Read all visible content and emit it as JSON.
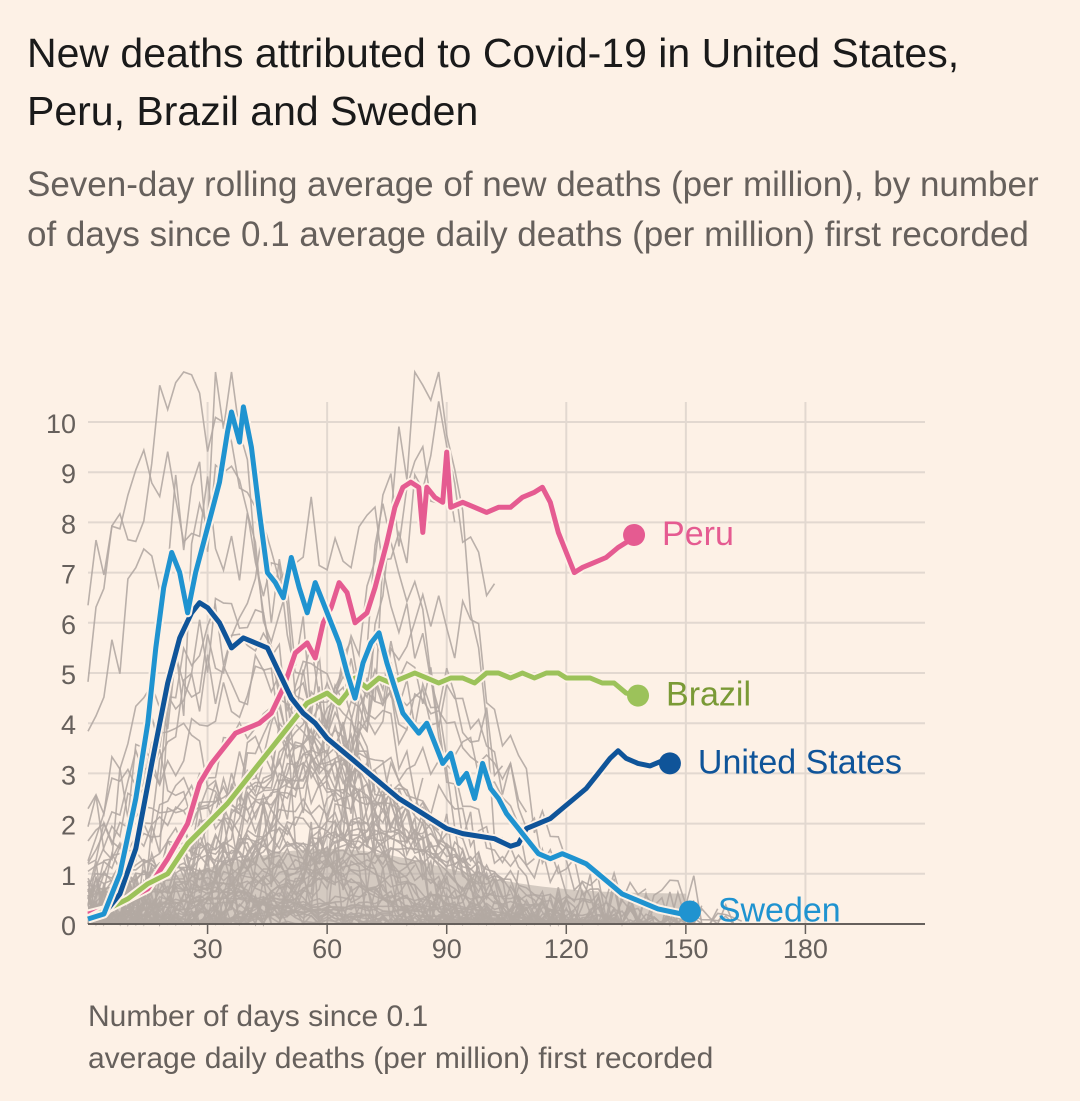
{
  "chart_data": {
    "type": "line",
    "title": "New deaths attributed to Covid-19 in United States, Peru, Brazil and Sweden",
    "subtitle": "Seven-day rolling average of new deaths (per million), by number of days since 0.1 average daily deaths (per million) first recorded",
    "xlabel_line1": "Number of days since 0.1",
    "xlabel_line2": "average daily deaths (per million) first recorded",
    "ylabel": "",
    "xlim": [
      0,
      210
    ],
    "ylim": [
      0,
      10
    ],
    "x_ticks": [
      30,
      60,
      90,
      120,
      150,
      180
    ],
    "y_ticks": [
      0,
      1,
      2,
      3,
      4,
      5,
      6,
      7,
      8,
      9,
      10
    ],
    "grid": true,
    "background_series_note": "Other countries shown in grey",
    "series": [
      {
        "name": "Peru",
        "color": "#e55b91",
        "label_color": "#e55b91",
        "points": [
          [
            0,
            0.2
          ],
          [
            5,
            0.3
          ],
          [
            10,
            0.5
          ],
          [
            15,
            0.7
          ],
          [
            20,
            1.3
          ],
          [
            25,
            2.0
          ],
          [
            28,
            2.8
          ],
          [
            31,
            3.2
          ],
          [
            34,
            3.5
          ],
          [
            37,
            3.8
          ],
          [
            40,
            3.9
          ],
          [
            43,
            4.0
          ],
          [
            46,
            4.2
          ],
          [
            49,
            4.7
          ],
          [
            52,
            5.4
          ],
          [
            55,
            5.6
          ],
          [
            57,
            5.3
          ],
          [
            59,
            6.0
          ],
          [
            61,
            6.3
          ],
          [
            63,
            6.8
          ],
          [
            65,
            6.6
          ],
          [
            67,
            6.0
          ],
          [
            70,
            6.2
          ],
          [
            72,
            6.7
          ],
          [
            75,
            7.6
          ],
          [
            77,
            8.3
          ],
          [
            79,
            8.7
          ],
          [
            81,
            8.8
          ],
          [
            83,
            8.7
          ],
          [
            84,
            7.8
          ],
          [
            85,
            8.7
          ],
          [
            87,
            8.5
          ],
          [
            89,
            8.4
          ],
          [
            90,
            9.4
          ],
          [
            91,
            8.3
          ],
          [
            94,
            8.4
          ],
          [
            97,
            8.3
          ],
          [
            100,
            8.2
          ],
          [
            103,
            8.3
          ],
          [
            106,
            8.3
          ],
          [
            109,
            8.5
          ],
          [
            112,
            8.6
          ],
          [
            114,
            8.7
          ],
          [
            116,
            8.4
          ],
          [
            118,
            7.8
          ],
          [
            120,
            7.4
          ],
          [
            122,
            7.0
          ],
          [
            124,
            7.1
          ],
          [
            127,
            7.2
          ],
          [
            130,
            7.3
          ],
          [
            133,
            7.5
          ],
          [
            135,
            7.6
          ],
          [
            137,
            7.75
          ]
        ]
      },
      {
        "name": "Brazil",
        "color": "#9cc25a",
        "label_color": "#7a9a36",
        "points": [
          [
            0,
            0.1
          ],
          [
            5,
            0.3
          ],
          [
            10,
            0.5
          ],
          [
            15,
            0.8
          ],
          [
            20,
            1.0
          ],
          [
            25,
            1.6
          ],
          [
            30,
            2.0
          ],
          [
            35,
            2.4
          ],
          [
            40,
            2.9
          ],
          [
            45,
            3.4
          ],
          [
            50,
            3.9
          ],
          [
            55,
            4.4
          ],
          [
            60,
            4.6
          ],
          [
            63,
            4.4
          ],
          [
            65,
            4.6
          ],
          [
            67,
            4.9
          ],
          [
            70,
            4.7
          ],
          [
            73,
            4.9
          ],
          [
            76,
            4.8
          ],
          [
            79,
            4.9
          ],
          [
            82,
            5.0
          ],
          [
            85,
            4.9
          ],
          [
            88,
            4.8
          ],
          [
            91,
            4.9
          ],
          [
            94,
            4.9
          ],
          [
            97,
            4.8
          ],
          [
            100,
            5.0
          ],
          [
            103,
            5.0
          ],
          [
            106,
            4.9
          ],
          [
            109,
            5.0
          ],
          [
            112,
            4.9
          ],
          [
            115,
            5.0
          ],
          [
            118,
            5.0
          ],
          [
            120,
            4.9
          ],
          [
            123,
            4.9
          ],
          [
            126,
            4.9
          ],
          [
            129,
            4.8
          ],
          [
            132,
            4.8
          ],
          [
            135,
            4.6
          ],
          [
            138,
            4.55
          ]
        ]
      },
      {
        "name": "United States",
        "color": "#0f5499",
        "label_color": "#0f5499",
        "points": [
          [
            0,
            0.1
          ],
          [
            4,
            0.2
          ],
          [
            8,
            0.6
          ],
          [
            12,
            1.5
          ],
          [
            16,
            3.2
          ],
          [
            20,
            4.8
          ],
          [
            23,
            5.7
          ],
          [
            26,
            6.2
          ],
          [
            28,
            6.4
          ],
          [
            30,
            6.3
          ],
          [
            33,
            6.0
          ],
          [
            36,
            5.5
          ],
          [
            39,
            5.7
          ],
          [
            42,
            5.6
          ],
          [
            45,
            5.5
          ],
          [
            48,
            5.0
          ],
          [
            51,
            4.5
          ],
          [
            54,
            4.2
          ],
          [
            57,
            4.0
          ],
          [
            60,
            3.7
          ],
          [
            63,
            3.5
          ],
          [
            66,
            3.3
          ],
          [
            69,
            3.1
          ],
          [
            72,
            2.9
          ],
          [
            75,
            2.7
          ],
          [
            78,
            2.5
          ],
          [
            82,
            2.3
          ],
          [
            86,
            2.1
          ],
          [
            90,
            1.9
          ],
          [
            94,
            1.8
          ],
          [
            98,
            1.75
          ],
          [
            102,
            1.7
          ],
          [
            106,
            1.55
          ],
          [
            108,
            1.6
          ],
          [
            110,
            1.9
          ],
          [
            113,
            2.0
          ],
          [
            116,
            2.1
          ],
          [
            119,
            2.3
          ],
          [
            122,
            2.5
          ],
          [
            125,
            2.7
          ],
          [
            128,
            3.0
          ],
          [
            131,
            3.3
          ],
          [
            133,
            3.45
          ],
          [
            135,
            3.3
          ],
          [
            138,
            3.2
          ],
          [
            141,
            3.15
          ],
          [
            144,
            3.25
          ],
          [
            146,
            3.2
          ]
        ]
      },
      {
        "name": "Sweden",
        "color": "#1f93d0",
        "label_color": "#1f93d0",
        "points": [
          [
            0,
            0.1
          ],
          [
            4,
            0.2
          ],
          [
            8,
            1.0
          ],
          [
            12,
            2.5
          ],
          [
            15,
            4.0
          ],
          [
            17,
            5.5
          ],
          [
            19,
            6.7
          ],
          [
            21,
            7.4
          ],
          [
            23,
            7.0
          ],
          [
            25,
            6.2
          ],
          [
            27,
            7.0
          ],
          [
            29,
            7.6
          ],
          [
            31,
            8.2
          ],
          [
            33,
            8.8
          ],
          [
            35,
            9.8
          ],
          [
            36,
            10.2
          ],
          [
            38,
            9.6
          ],
          [
            39,
            10.3
          ],
          [
            41,
            9.5
          ],
          [
            43,
            8.2
          ],
          [
            45,
            7.0
          ],
          [
            47,
            6.8
          ],
          [
            49,
            6.5
          ],
          [
            51,
            7.3
          ],
          [
            53,
            6.7
          ],
          [
            55,
            6.2
          ],
          [
            57,
            6.8
          ],
          [
            59,
            6.4
          ],
          [
            61,
            6.0
          ],
          [
            63,
            5.6
          ],
          [
            65,
            5.0
          ],
          [
            67,
            4.5
          ],
          [
            69,
            5.2
          ],
          [
            71,
            5.6
          ],
          [
            73,
            5.8
          ],
          [
            75,
            5.2
          ],
          [
            77,
            4.7
          ],
          [
            79,
            4.2
          ],
          [
            81,
            4.0
          ],
          [
            83,
            3.8
          ],
          [
            85,
            4.0
          ],
          [
            87,
            3.6
          ],
          [
            89,
            3.2
          ],
          [
            91,
            3.4
          ],
          [
            93,
            2.8
          ],
          [
            95,
            3.0
          ],
          [
            97,
            2.5
          ],
          [
            99,
            3.2
          ],
          [
            101,
            2.7
          ],
          [
            103,
            2.5
          ],
          [
            105,
            2.2
          ],
          [
            107,
            2.0
          ],
          [
            109,
            1.8
          ],
          [
            111,
            1.6
          ],
          [
            113,
            1.4
          ],
          [
            116,
            1.3
          ],
          [
            119,
            1.4
          ],
          [
            122,
            1.3
          ],
          [
            125,
            1.2
          ],
          [
            128,
            1.0
          ],
          [
            131,
            0.8
          ],
          [
            134,
            0.6
          ],
          [
            137,
            0.5
          ],
          [
            140,
            0.4
          ],
          [
            143,
            0.3
          ],
          [
            146,
            0.25
          ],
          [
            149,
            0.2
          ],
          [
            151,
            0.25
          ]
        ]
      }
    ],
    "end_labels": [
      "Peru",
      "Brazil",
      "United States",
      "Sweden"
    ]
  },
  "colors": {
    "background": "#fdf1e6",
    "grid": "#e2d8d0",
    "axis_text": "#66605c",
    "grey_series": "#b2a9a3"
  }
}
